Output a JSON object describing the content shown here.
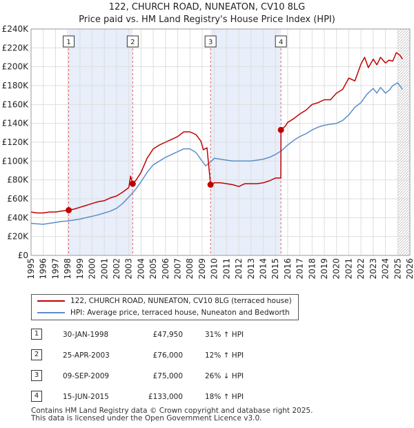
{
  "title": {
    "line1": "122, CHURCH ROAD, NUNEATON, CV10 8LG",
    "line2": "Price paid vs. HM Land Registry's House Price Index (HPI)"
  },
  "colors": {
    "price": "#c00000",
    "hpi": "#5b8dc9",
    "shade": "#e8eefa",
    "grid": "#dddddd",
    "marker_line": "#e06060"
  },
  "chart_data": {
    "type": "line",
    "title": "122, CHURCH ROAD, NUNEATON, CV10 8LG — Price paid vs. HM Land Registry's House Price Index (HPI)",
    "xlim": [
      1995,
      2026
    ],
    "ylim": [
      0,
      240000
    ],
    "x_ticks": [
      "1995",
      "1996",
      "1997",
      "1998",
      "1999",
      "2000",
      "2001",
      "2002",
      "2003",
      "2004",
      "2005",
      "2006",
      "2007",
      "2008",
      "2009",
      "2010",
      "2011",
      "2012",
      "2013",
      "2014",
      "2015",
      "2016",
      "2017",
      "2018",
      "2019",
      "2020",
      "2021",
      "2022",
      "2023",
      "2024",
      "2025",
      "2026"
    ],
    "y_ticks": [
      {
        "value": 0,
        "label": "£0"
      },
      {
        "value": 20000,
        "label": "£20K"
      },
      {
        "value": 40000,
        "label": "£40K"
      },
      {
        "value": 60000,
        "label": "£60K"
      },
      {
        "value": 80000,
        "label": "£80K"
      },
      {
        "value": 100000,
        "label": "£100K"
      },
      {
        "value": 120000,
        "label": "£120K"
      },
      {
        "value": 140000,
        "label": "£140K"
      },
      {
        "value": 160000,
        "label": "£160K"
      },
      {
        "value": 180000,
        "label": "£180K"
      },
      {
        "value": 200000,
        "label": "£200K"
      },
      {
        "value": 220000,
        "label": "£220K"
      },
      {
        "value": 240000,
        "label": "£240K"
      }
    ],
    "shaded_spans": [
      [
        1998.08,
        2003.32
      ],
      [
        2009.69,
        2015.45
      ]
    ],
    "projection_start": 2025.0,
    "series": [
      {
        "name": "122, CHURCH ROAD, NUNEATON, CV10 8LG (terraced house)",
        "color": "#c00000",
        "x": [
          1995,
          1995.5,
          1996,
          1996.5,
          1997,
          1997.5,
          1998.08,
          1998.5,
          1999,
          1999.5,
          2000,
          2000.5,
          2001,
          2001.5,
          2002,
          2002.5,
          2003,
          2003.15,
          2003.32,
          2003.6,
          2004,
          2004.5,
          2005,
          2005.5,
          2006,
          2006.5,
          2007,
          2007.5,
          2008,
          2008.5,
          2008.9,
          2009.1,
          2009.4,
          2009.69,
          2010,
          2010.5,
          2011,
          2011.5,
          2012,
          2012.5,
          2013,
          2013.5,
          2014,
          2014.5,
          2015,
          2015.44,
          2015.45,
          2015.8,
          2016,
          2016.5,
          2017,
          2017.5,
          2018,
          2018.5,
          2019,
          2019.5,
          2020,
          2020.5,
          2021,
          2021.5,
          2022,
          2022.3,
          2022.6,
          2023,
          2023.3,
          2023.6,
          2024,
          2024.3,
          2024.6,
          2024.9,
          2025.2,
          2025.4
        ],
        "values": [
          46000,
          45000,
          45000,
          46000,
          46000,
          47000,
          47950,
          49000,
          51000,
          53000,
          55000,
          57000,
          58000,
          61000,
          63000,
          67000,
          72000,
          84000,
          76000,
          80000,
          88000,
          103000,
          113000,
          117000,
          120000,
          123000,
          126000,
          131000,
          131000,
          128000,
          121000,
          112000,
          114000,
          75000,
          77000,
          77000,
          76000,
          75000,
          73000,
          76000,
          76000,
          76000,
          77000,
          79000,
          82000,
          82000,
          133000,
          137000,
          141000,
          145000,
          150000,
          154000,
          160000,
          162000,
          165000,
          165000,
          172000,
          176000,
          188000,
          185000,
          203000,
          210000,
          199000,
          208000,
          202000,
          210000,
          204000,
          207000,
          206000,
          215000,
          212000,
          208000
        ]
      },
      {
        "name": "HPI: Average price, terraced house, Nuneaton and Bedworth",
        "color": "#5b8dc9",
        "x": [
          1995,
          1995.5,
          1996,
          1996.5,
          1997,
          1997.5,
          1998,
          1998.5,
          1999,
          1999.5,
          2000,
          2000.5,
          2001,
          2001.5,
          2002,
          2002.5,
          2003,
          2003.5,
          2004,
          2004.5,
          2005,
          2005.5,
          2006,
          2006.5,
          2007,
          2007.5,
          2008,
          2008.5,
          2009,
          2009.3,
          2009.7,
          2010,
          2010.5,
          2011,
          2011.5,
          2012,
          2012.5,
          2013,
          2013.5,
          2014,
          2014.5,
          2015,
          2015.5,
          2016,
          2016.5,
          2017,
          2017.5,
          2018,
          2018.5,
          2019,
          2019.5,
          2020,
          2020.5,
          2021,
          2021.5,
          2022,
          2022.5,
          2023,
          2023.3,
          2023.6,
          2024,
          2024.3,
          2024.6,
          2025,
          2025.4
        ],
        "values": [
          34000,
          33500,
          33000,
          34000,
          35000,
          36000,
          36500,
          37500,
          38500,
          40000,
          41500,
          43000,
          45000,
          47000,
          50000,
          55000,
          62000,
          69000,
          78000,
          88000,
          96000,
          100000,
          104000,
          107000,
          110000,
          113000,
          113000,
          109000,
          100000,
          95000,
          99000,
          103000,
          102000,
          101000,
          100000,
          100000,
          100000,
          100000,
          101000,
          102000,
          104000,
          107000,
          111000,
          117000,
          122000,
          126000,
          129000,
          133000,
          136000,
          138000,
          139000,
          140000,
          143000,
          149000,
          157000,
          162000,
          171000,
          177000,
          172000,
          178000,
          172000,
          175000,
          180000,
          183000,
          176000
        ]
      }
    ],
    "sale_markers": [
      {
        "id": "1",
        "x": 1998.08,
        "y": 47950
      },
      {
        "id": "2",
        "x": 2003.32,
        "y": 76000
      },
      {
        "id": "3",
        "x": 2009.69,
        "y": 75000
      },
      {
        "id": "4",
        "x": 2015.45,
        "y": 133000
      }
    ]
  },
  "legend": {
    "price_label": "122, CHURCH ROAD, NUNEATON, CV10 8LG (terraced house)",
    "hpi_label": "HPI: Average price, terraced house, Nuneaton and Bedworth"
  },
  "sales": [
    {
      "num": "1",
      "date": "30-JAN-1998",
      "price": "£47,950",
      "hpi": "31% ↑ HPI"
    },
    {
      "num": "2",
      "date": "25-APR-2003",
      "price": "£76,000",
      "hpi": "12% ↑ HPI"
    },
    {
      "num": "3",
      "date": "09-SEP-2009",
      "price": "£75,000",
      "hpi": "26% ↓ HPI"
    },
    {
      "num": "4",
      "date": "15-JUN-2015",
      "price": "£133,000",
      "hpi": "18% ↑ HPI"
    }
  ],
  "footer": {
    "line1": "Contains HM Land Registry data © Crown copyright and database right 2025.",
    "line2": "This data is licensed under the Open Government Licence v3.0."
  }
}
